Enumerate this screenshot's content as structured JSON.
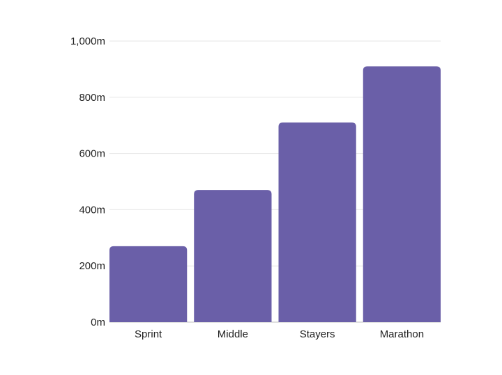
{
  "chart_data": {
    "type": "bar",
    "categories": [
      "Sprint",
      "Middle",
      "Stayers",
      "Marathon"
    ],
    "values": [
      270,
      470,
      710,
      910
    ],
    "ylim": [
      0,
      1000
    ],
    "yticks": [
      0,
      200,
      400,
      600,
      800,
      1000
    ],
    "ytick_labels": [
      "0m",
      "200m",
      "400m",
      "600m",
      "800m",
      "1,000m"
    ],
    "grid": true,
    "title": "",
    "xlabel": "",
    "ylabel": ""
  },
  "colors": {
    "bar": "#6a5fa8"
  }
}
